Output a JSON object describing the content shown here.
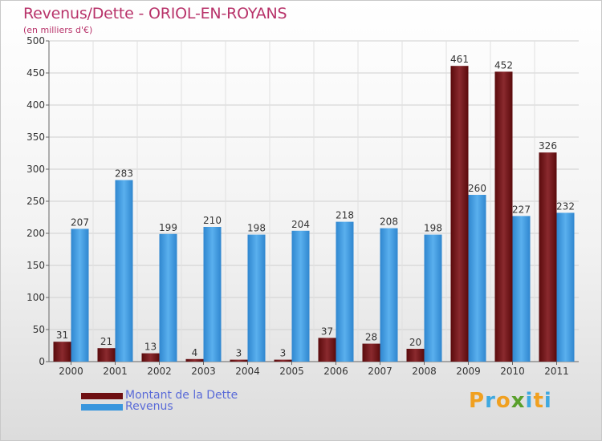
{
  "header": {
    "title": "Revenus/Dette - ORIOL-EN-ROYANS",
    "subtitle": "(en milliers d'€)"
  },
  "legend": {
    "items": [
      {
        "label": "Montant de la Dette",
        "color": "#6e0f12"
      },
      {
        "label": "Revenus",
        "color": "#3a96dd"
      }
    ]
  },
  "logo": {
    "letters": [
      "P",
      "r",
      "o",
      "x",
      "i",
      "t",
      "i"
    ],
    "colors": [
      "#f0a020",
      "#3fa9e0",
      "#f0a020",
      "#5aa02c",
      "#3fa9e0",
      "#f0a020",
      "#3fa9e0"
    ]
  },
  "chart_data": {
    "type": "bar",
    "title": "Revenus/Dette - ORIOL-EN-ROYANS",
    "ylabel": "(en milliers d'€)",
    "categories": [
      "2000",
      "2001",
      "2002",
      "2003",
      "2004",
      "2005",
      "2006",
      "2007",
      "2008",
      "2009",
      "2010",
      "2011"
    ],
    "series": [
      {
        "name": "Montant de la Dette",
        "color": "#6e0f12",
        "values": [
          31,
          21,
          13,
          4,
          3,
          3,
          37,
          28,
          20,
          461,
          452,
          326
        ]
      },
      {
        "name": "Revenus",
        "color": "#3a96dd",
        "values": [
          207,
          283,
          199,
          210,
          198,
          204,
          218,
          208,
          198,
          260,
          227,
          232
        ]
      }
    ],
    "ylim": [
      0,
      500
    ],
    "yticks": [
      0,
      50,
      100,
      150,
      200,
      250,
      300,
      350,
      400,
      450,
      500
    ],
    "grid": true,
    "legend_position": "bottom-left"
  }
}
